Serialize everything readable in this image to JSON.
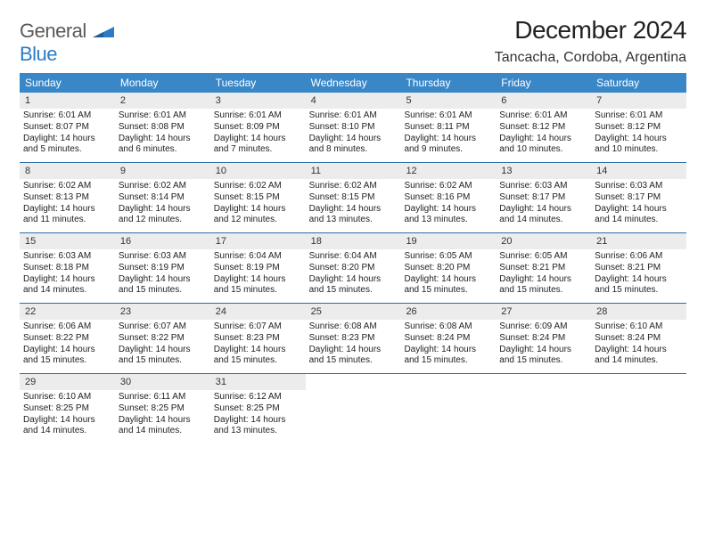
{
  "brand": {
    "part1": "General",
    "part2": "Blue"
  },
  "title": "December 2024",
  "location": "Tancacha, Cordoba, Argentina",
  "colors": {
    "header_bg": "#3a87c8",
    "week_border": "#2f6fa6",
    "daynum_bg": "#ececec",
    "text": "#222222",
    "logo_gray": "#5a5a5a",
    "logo_blue": "#2c7bc4"
  },
  "weekdays": [
    "Sunday",
    "Monday",
    "Tuesday",
    "Wednesday",
    "Thursday",
    "Friday",
    "Saturday"
  ],
  "weeks": [
    [
      {
        "n": "1",
        "sr": "6:01 AM",
        "ss": "8:07 PM",
        "dh": "14",
        "dm": "5"
      },
      {
        "n": "2",
        "sr": "6:01 AM",
        "ss": "8:08 PM",
        "dh": "14",
        "dm": "6"
      },
      {
        "n": "3",
        "sr": "6:01 AM",
        "ss": "8:09 PM",
        "dh": "14",
        "dm": "7"
      },
      {
        "n": "4",
        "sr": "6:01 AM",
        "ss": "8:10 PM",
        "dh": "14",
        "dm": "8"
      },
      {
        "n": "5",
        "sr": "6:01 AM",
        "ss": "8:11 PM",
        "dh": "14",
        "dm": "9"
      },
      {
        "n": "6",
        "sr": "6:01 AM",
        "ss": "8:12 PM",
        "dh": "14",
        "dm": "10"
      },
      {
        "n": "7",
        "sr": "6:01 AM",
        "ss": "8:12 PM",
        "dh": "14",
        "dm": "10"
      }
    ],
    [
      {
        "n": "8",
        "sr": "6:02 AM",
        "ss": "8:13 PM",
        "dh": "14",
        "dm": "11"
      },
      {
        "n": "9",
        "sr": "6:02 AM",
        "ss": "8:14 PM",
        "dh": "14",
        "dm": "12"
      },
      {
        "n": "10",
        "sr": "6:02 AM",
        "ss": "8:15 PM",
        "dh": "14",
        "dm": "12"
      },
      {
        "n": "11",
        "sr": "6:02 AM",
        "ss": "8:15 PM",
        "dh": "14",
        "dm": "13"
      },
      {
        "n": "12",
        "sr": "6:02 AM",
        "ss": "8:16 PM",
        "dh": "14",
        "dm": "13"
      },
      {
        "n": "13",
        "sr": "6:03 AM",
        "ss": "8:17 PM",
        "dh": "14",
        "dm": "14"
      },
      {
        "n": "14",
        "sr": "6:03 AM",
        "ss": "8:17 PM",
        "dh": "14",
        "dm": "14"
      }
    ],
    [
      {
        "n": "15",
        "sr": "6:03 AM",
        "ss": "8:18 PM",
        "dh": "14",
        "dm": "14"
      },
      {
        "n": "16",
        "sr": "6:03 AM",
        "ss": "8:19 PM",
        "dh": "14",
        "dm": "15"
      },
      {
        "n": "17",
        "sr": "6:04 AM",
        "ss": "8:19 PM",
        "dh": "14",
        "dm": "15"
      },
      {
        "n": "18",
        "sr": "6:04 AM",
        "ss": "8:20 PM",
        "dh": "14",
        "dm": "15"
      },
      {
        "n": "19",
        "sr": "6:05 AM",
        "ss": "8:20 PM",
        "dh": "14",
        "dm": "15"
      },
      {
        "n": "20",
        "sr": "6:05 AM",
        "ss": "8:21 PM",
        "dh": "14",
        "dm": "15"
      },
      {
        "n": "21",
        "sr": "6:06 AM",
        "ss": "8:21 PM",
        "dh": "14",
        "dm": "15"
      }
    ],
    [
      {
        "n": "22",
        "sr": "6:06 AM",
        "ss": "8:22 PM",
        "dh": "14",
        "dm": "15"
      },
      {
        "n": "23",
        "sr": "6:07 AM",
        "ss": "8:22 PM",
        "dh": "14",
        "dm": "15"
      },
      {
        "n": "24",
        "sr": "6:07 AM",
        "ss": "8:23 PM",
        "dh": "14",
        "dm": "15"
      },
      {
        "n": "25",
        "sr": "6:08 AM",
        "ss": "8:23 PM",
        "dh": "14",
        "dm": "15"
      },
      {
        "n": "26",
        "sr": "6:08 AM",
        "ss": "8:24 PM",
        "dh": "14",
        "dm": "15"
      },
      {
        "n": "27",
        "sr": "6:09 AM",
        "ss": "8:24 PM",
        "dh": "14",
        "dm": "15"
      },
      {
        "n": "28",
        "sr": "6:10 AM",
        "ss": "8:24 PM",
        "dh": "14",
        "dm": "14"
      }
    ],
    [
      {
        "n": "29",
        "sr": "6:10 AM",
        "ss": "8:25 PM",
        "dh": "14",
        "dm": "14"
      },
      {
        "n": "30",
        "sr": "6:11 AM",
        "ss": "8:25 PM",
        "dh": "14",
        "dm": "14"
      },
      {
        "n": "31",
        "sr": "6:12 AM",
        "ss": "8:25 PM",
        "dh": "14",
        "dm": "13"
      },
      null,
      null,
      null,
      null
    ]
  ]
}
